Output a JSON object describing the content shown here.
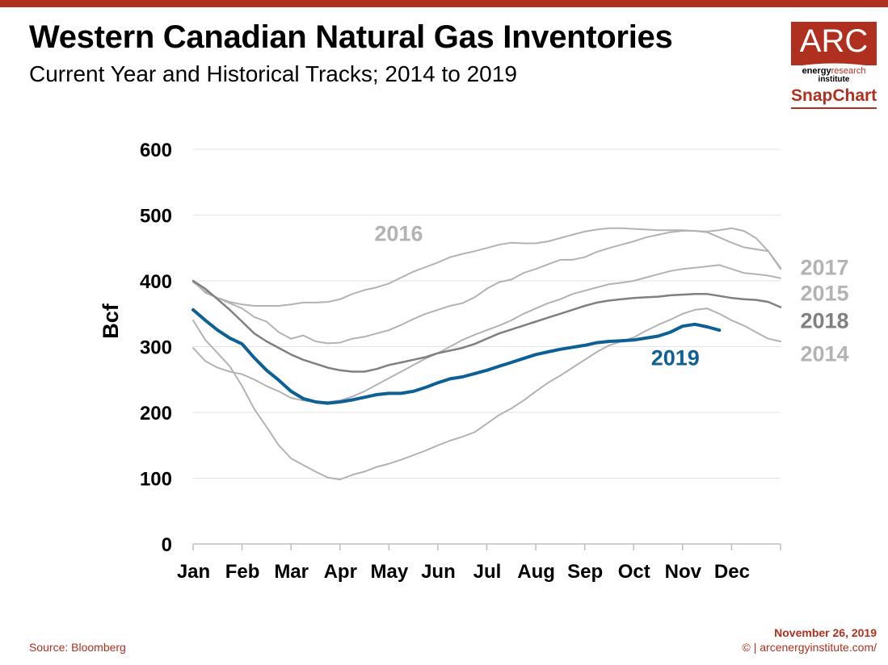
{
  "header": {
    "title": "Western Canadian Natural Gas Inventories",
    "subtitle": "Current Year and Historical Tracks; 2014 to 2019"
  },
  "logo": {
    "brand": "ARC",
    "energy": "energy",
    "research": "research",
    "institute": "institute",
    "product": "SnapChart"
  },
  "footer": {
    "source": "Source: Bloomberg",
    "date": "November 26, 2019",
    "copyright": "© | arcenergyinstitute.com/"
  },
  "colors": {
    "accent": "#b0301f",
    "current_year": "#0c6096",
    "historical_light": "#b3b3b3",
    "historical_dark": "#808080",
    "gridline": "#e3e3e3"
  },
  "chart_data": {
    "type": "line",
    "title": "Western Canadian Natural Gas Inventories",
    "subtitle": "Current Year and Historical Tracks; 2014 to 2019",
    "xlabel": "",
    "ylabel": "Bcf",
    "ylim": [
      0,
      600
    ],
    "yticks": [
      0,
      100,
      200,
      300,
      400,
      500,
      600
    ],
    "xlim": [
      0,
      12
    ],
    "x_tick_labels": [
      "Jan",
      "Feb",
      "Mar",
      "Apr",
      "May",
      "Jun",
      "Jul",
      "Aug",
      "Sep",
      "Oct",
      "Nov",
      "Dec"
    ],
    "grid": "horizontal",
    "legend": "inline labels at right",
    "x_unit": "months from Jan 1",
    "series": [
      {
        "name": "2014",
        "color": "#b3b3b3",
        "width": 2,
        "x": [
          0,
          0.25,
          0.5,
          0.75,
          1.0,
          1.25,
          1.5,
          1.75,
          2.0,
          2.25,
          2.5,
          2.75,
          3.0,
          3.25,
          3.5,
          3.75,
          4.0,
          4.25,
          4.5,
          4.75,
          5.0,
          5.25,
          5.5,
          5.75,
          6.0,
          6.25,
          6.5,
          6.75,
          7.0,
          7.25,
          7.5,
          7.75,
          8.0,
          8.25,
          8.5,
          8.75,
          9.0,
          9.25,
          9.5,
          9.75,
          10.0,
          10.25,
          10.5,
          10.75,
          11.0,
          11.25,
          11.5,
          11.75,
          12.0
        ],
        "values": [
          340,
          310,
          290,
          270,
          240,
          205,
          178,
          150,
          130,
          120,
          110,
          101,
          98,
          105,
          110,
          117,
          122,
          128,
          135,
          142,
          150,
          157,
          163,
          170,
          183,
          196,
          206,
          218,
          232,
          245,
          256,
          268,
          280,
          292,
          302,
          308,
          314,
          324,
          333,
          341,
          350,
          356,
          358,
          350,
          340,
          332,
          322,
          312,
          308
        ]
      },
      {
        "name": "2015",
        "color": "#b3b3b3",
        "width": 2,
        "x": [
          0,
          0.25,
          0.5,
          0.75,
          1.0,
          1.25,
          1.5,
          1.75,
          2.0,
          2.25,
          2.5,
          2.75,
          3.0,
          3.25,
          3.5,
          3.75,
          4.0,
          4.25,
          4.5,
          4.75,
          5.0,
          5.25,
          5.5,
          5.75,
          6.0,
          6.25,
          6.5,
          6.75,
          7.0,
          7.25,
          7.5,
          7.75,
          8.0,
          8.25,
          8.5,
          8.75,
          9.0,
          9.25,
          9.5,
          9.75,
          10.0,
          10.25,
          10.5,
          10.75,
          11.0,
          11.25,
          11.5,
          11.75,
          12.0
        ],
        "values": [
          298,
          278,
          268,
          262,
          258,
          250,
          240,
          232,
          222,
          218,
          216,
          216,
          218,
          224,
          232,
          242,
          252,
          262,
          272,
          282,
          290,
          300,
          310,
          318,
          325,
          332,
          340,
          350,
          358,
          366,
          372,
          380,
          385,
          390,
          395,
          397,
          400,
          405,
          410,
          415,
          418,
          420,
          422,
          424,
          418,
          412,
          410,
          408,
          404
        ]
      },
      {
        "name": "2016",
        "color": "#b3b3b3",
        "width": 2,
        "x": [
          0,
          0.25,
          0.5,
          0.75,
          1.0,
          1.25,
          1.5,
          1.75,
          2.0,
          2.25,
          2.5,
          2.75,
          3.0,
          3.25,
          3.5,
          3.75,
          4.0,
          4.25,
          4.5,
          4.75,
          5.0,
          5.25,
          5.5,
          5.75,
          6.0,
          6.25,
          6.5,
          6.75,
          7.0,
          7.25,
          7.5,
          7.75,
          8.0,
          8.25,
          8.5,
          8.75,
          9.0,
          9.25,
          9.5,
          9.75,
          10.0,
          10.25,
          10.5,
          10.75,
          11.0,
          11.25,
          11.5,
          11.75,
          12.0
        ],
        "values": [
          398,
          384,
          374,
          368,
          364,
          362,
          362,
          362,
          364,
          367,
          367,
          368,
          372,
          380,
          386,
          390,
          396,
          405,
          414,
          421,
          428,
          436,
          441,
          445,
          450,
          455,
          458,
          457,
          457,
          460,
          465,
          470,
          475,
          478,
          480,
          480,
          479,
          478,
          477,
          477,
          477,
          476,
          475,
          477,
          480,
          476,
          465,
          445,
          418
        ]
      },
      {
        "name": "2017",
        "color": "#b3b3b3",
        "width": 2,
        "x": [
          0,
          0.25,
          0.5,
          0.75,
          1.0,
          1.25,
          1.5,
          1.75,
          2.0,
          2.25,
          2.5,
          2.75,
          3.0,
          3.25,
          3.5,
          3.75,
          4.0,
          4.25,
          4.5,
          4.75,
          5.0,
          5.25,
          5.5,
          5.75,
          6.0,
          6.25,
          6.5,
          6.75,
          7.0,
          7.25,
          7.5,
          7.75,
          8.0,
          8.25,
          8.5,
          8.75,
          9.0,
          9.25,
          9.5,
          9.75,
          10.0,
          10.25,
          10.5,
          10.75,
          11.0,
          11.25,
          11.5,
          11.75,
          12.0
        ],
        "values": [
          400,
          382,
          374,
          366,
          358,
          345,
          338,
          322,
          312,
          317,
          308,
          305,
          306,
          312,
          315,
          320,
          325,
          333,
          342,
          350,
          356,
          362,
          366,
          375,
          388,
          398,
          402,
          412,
          418,
          425,
          432,
          432,
          436,
          444,
          450,
          455,
          460,
          466,
          470,
          474,
          476,
          476,
          474,
          466,
          458,
          451,
          448,
          445,
          420
        ]
      },
      {
        "name": "2018",
        "color": "#808080",
        "width": 2.5,
        "x": [
          0,
          0.25,
          0.5,
          0.75,
          1.0,
          1.25,
          1.5,
          1.75,
          2.0,
          2.25,
          2.5,
          2.75,
          3.0,
          3.25,
          3.5,
          3.75,
          4.0,
          4.25,
          4.5,
          4.75,
          5.0,
          5.25,
          5.5,
          5.75,
          6.0,
          6.25,
          6.5,
          6.75,
          7.0,
          7.25,
          7.5,
          7.75,
          8.0,
          8.25,
          8.5,
          8.75,
          9.0,
          9.25,
          9.5,
          9.75,
          10.0,
          10.25,
          10.5,
          10.75,
          11.0,
          11.25,
          11.5,
          11.75,
          12.0
        ],
        "values": [
          400,
          388,
          372,
          356,
          338,
          320,
          308,
          298,
          288,
          280,
          274,
          268,
          264,
          262,
          262,
          266,
          272,
          276,
          280,
          284,
          290,
          294,
          298,
          304,
          312,
          320,
          326,
          332,
          338,
          344,
          350,
          356,
          362,
          367,
          370,
          372,
          374,
          375,
          376,
          378,
          379,
          380,
          380,
          377,
          374,
          372,
          371,
          368,
          360
        ]
      },
      {
        "name": "2019",
        "color": "#0c6096",
        "width": 4,
        "x": [
          0,
          0.25,
          0.5,
          0.75,
          1.0,
          1.25,
          1.5,
          1.75,
          2.0,
          2.25,
          2.5,
          2.75,
          3.0,
          3.25,
          3.5,
          3.75,
          4.0,
          4.25,
          4.5,
          4.75,
          5.0,
          5.25,
          5.5,
          5.75,
          6.0,
          6.25,
          6.5,
          6.75,
          7.0,
          7.25,
          7.5,
          7.75,
          8.0,
          8.25,
          8.5,
          8.75,
          9.0,
          9.25,
          9.5,
          9.75,
          10.0,
          10.25,
          10.5,
          10.75
        ],
        "values": [
          356,
          340,
          325,
          313,
          304,
          283,
          264,
          249,
          232,
          221,
          216,
          214,
          216,
          219,
          223,
          227,
          229,
          229,
          232,
          238,
          245,
          251,
          254,
          259,
          264,
          270,
          276,
          282,
          288,
          292,
          296,
          299,
          302,
          306,
          308,
          309,
          310,
          313,
          316,
          322,
          331,
          334,
          330,
          325
        ]
      }
    ],
    "labels": [
      {
        "text": "2016",
        "series": "2016",
        "color": "#b3b3b3",
        "x": 4.2,
        "y": 461
      },
      {
        "text": "2017",
        "series": "2017",
        "color": "#b3b3b3",
        "x": 12.9,
        "y": 409
      },
      {
        "text": "2015",
        "series": "2015",
        "color": "#b3b3b3",
        "x": 12.9,
        "y": 370
      },
      {
        "text": "2018",
        "series": "2018",
        "color": "#808080",
        "x": 12.9,
        "y": 328
      },
      {
        "text": "2014",
        "series": "2014",
        "color": "#b3b3b3",
        "x": 12.9,
        "y": 278
      },
      {
        "text": "2019",
        "series": "2019",
        "color": "#0c6096",
        "x": 9.85,
        "y": 272
      }
    ]
  }
}
